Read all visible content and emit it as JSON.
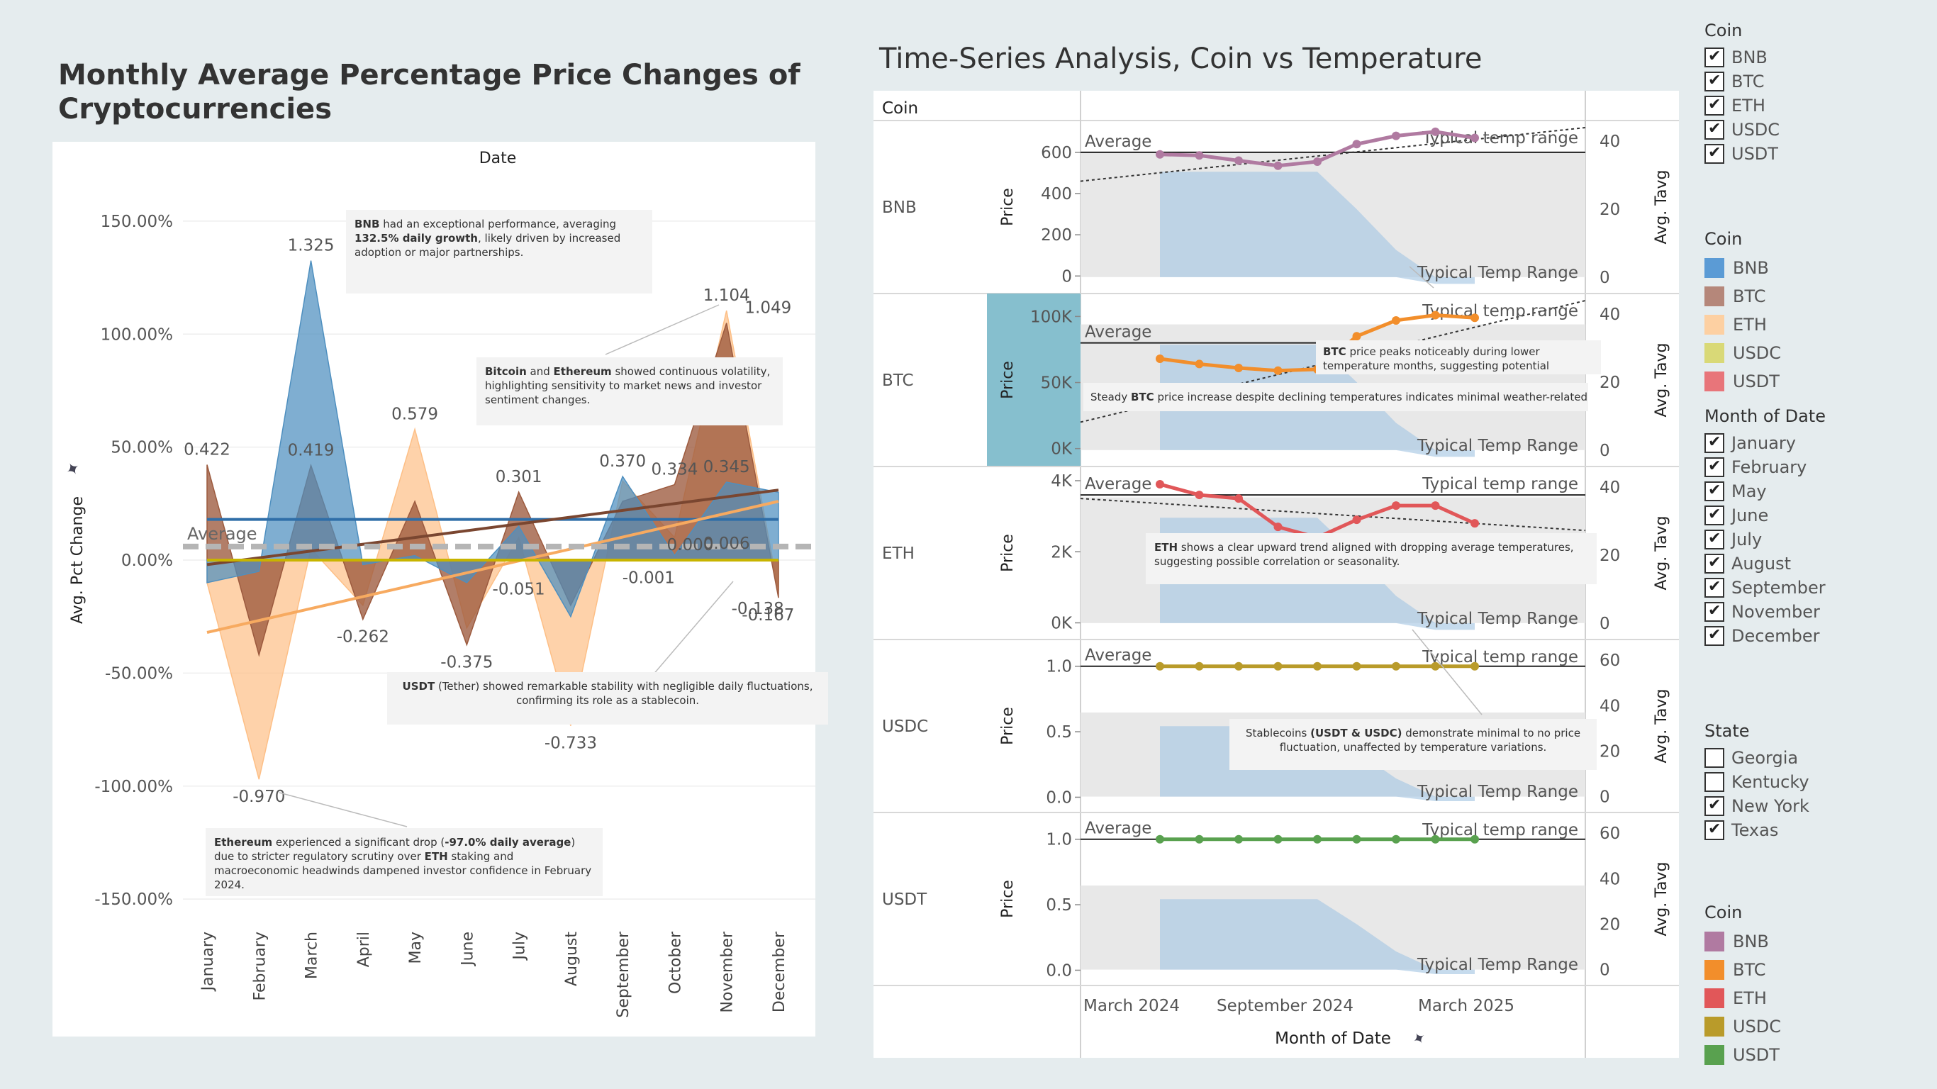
{
  "left_title": "Monthly Average Percentage Price Changes of Cryptocurrencies",
  "right_title": "Time-Series Analysis, Coin vs Temperature",
  "colors": {
    "BNB": "#4e8fbf",
    "BTC": "#9c5a3e",
    "ETH": "#fdbf86",
    "USDC": "#c8b400",
    "USDT": "#5b8a3a"
  },
  "chart_data": [
    {
      "type": "area",
      "title": "Monthly Average Percentage Price Changes of Cryptocurrencies",
      "xlabel": "Date",
      "ylabel": "Avg. Pct Change",
      "ylim": [
        -1.6,
        1.6
      ],
      "yticks": [
        "150.00%",
        "100.00%",
        "50.00%",
        "0.00%",
        "-50.00%",
        "-100.00%",
        "-150.00%"
      ],
      "ytick_values": [
        1.5,
        1.0,
        0.5,
        0.0,
        -0.5,
        -1.0,
        -1.5
      ],
      "categories": [
        "January",
        "February",
        "March",
        "April",
        "May",
        "June",
        "July",
        "August",
        "September",
        "October",
        "November",
        "December"
      ],
      "average_label": "Average",
      "average_value": 0.06,
      "series": [
        {
          "name": "BNB",
          "color": "#4e8fbf",
          "values": [
            -0.1,
            -0.05,
            1.325,
            -0.02,
            0.02,
            -0.1,
            0.15,
            -0.25,
            0.37,
            0.02,
            0.345,
            0.3
          ]
        },
        {
          "name": "BTC",
          "color": "#9c5a3e",
          "values": [
            0.422,
            -0.42,
            0.419,
            -0.262,
            0.26,
            -0.375,
            0.301,
            -0.2,
            0.26,
            0.334,
            1.049,
            -0.167
          ]
        },
        {
          "name": "ETH",
          "color": "#fdbf86",
          "values": [
            -0.1,
            -0.97,
            0.05,
            -0.2,
            0.579,
            -0.3,
            0.1,
            -0.733,
            0.35,
            0.1,
            1.104,
            -0.138
          ]
        },
        {
          "name": "USDC",
          "color": "#c8b400",
          "values": [
            0.0,
            0.0,
            0.0,
            0.0,
            0.0,
            0.0,
            0.0,
            0.0,
            0.0,
            0.0,
            0.0,
            0.0
          ]
        },
        {
          "name": "USDT",
          "color": "#5b8a3a",
          "values": [
            0.0,
            0.0,
            0.0,
            0.0,
            0.0,
            0.0,
            0.0,
            0.0,
            0.0,
            0.0,
            0.0,
            0.0
          ]
        }
      ],
      "trendlines": [
        {
          "name": "BNB",
          "color": "#2f6ea8",
          "start": 0.18,
          "end": 0.18
        },
        {
          "name": "BTC",
          "color": "#7a4630",
          "start": -0.02,
          "end": 0.31
        },
        {
          "name": "ETH",
          "color": "#f7aa60",
          "start": -0.32,
          "end": 0.26
        },
        {
          "name": "USDC",
          "color": "#c8b400",
          "start": 0.0,
          "end": 0.0
        }
      ],
      "data_labels": [
        {
          "text": "1.325",
          "cat": 2,
          "value": 1.325
        },
        {
          "text": "0.422",
          "cat": 0,
          "value": 0.422
        },
        {
          "text": "0.419",
          "cat": 2,
          "value": 0.419
        },
        {
          "text": "0.579",
          "cat": 4,
          "value": 0.579
        },
        {
          "text": "0.301",
          "cat": 6,
          "value": 0.301
        },
        {
          "text": "0.370",
          "cat": 8,
          "value": 0.37
        },
        {
          "text": "0.334",
          "cat": 9,
          "value": 0.334
        },
        {
          "text": "0.345",
          "cat": 10,
          "value": 0.345
        },
        {
          "text": "1.104",
          "cat": 10,
          "value": 1.104
        },
        {
          "text": "1.049",
          "cat": 10.8,
          "value": 1.049
        },
        {
          "text": "0.006",
          "cat": 10,
          "value": 0.006
        },
        {
          "text": "-0.262",
          "cat": 3,
          "value": -0.262
        },
        {
          "text": "-0.375",
          "cat": 5,
          "value": -0.375
        },
        {
          "text": "-0.051",
          "cat": 6,
          "value": -0.051
        },
        {
          "text": "-0.001",
          "cat": 8.5,
          "value": -0.001
        },
        {
          "text": "0.000",
          "cat": 9.3,
          "value": 0.0
        },
        {
          "text": "-0.138",
          "cat": 10.6,
          "value": -0.138
        },
        {
          "text": "-0.167",
          "cat": 10.8,
          "value": -0.167
        },
        {
          "text": "-0.733",
          "cat": 7,
          "value": -0.733
        },
        {
          "text": "-0.970",
          "cat": 1,
          "value": -0.97
        }
      ]
    },
    {
      "type": "line",
      "title": "Time-Series Analysis, Coin vs Temperature",
      "xlabel": "Month of Date",
      "x_ticks": [
        "March 2024",
        "September 2024",
        "March 2025"
      ],
      "row_header": "Coin",
      "ylabel": "Price",
      "ylabel_right": "Avg. Tavg",
      "rows": [
        {
          "coin": "BNB",
          "color": "#b07aa1",
          "yticks": [
            "600",
            "400",
            "200",
            "0"
          ],
          "ytick_values": [
            600,
            400,
            200,
            0
          ],
          "ylim": [
            -30,
            720
          ],
          "rticks": [
            "40",
            "20",
            "0"
          ],
          "rtick_values": [
            40,
            20,
            0
          ],
          "rlim": [
            -1.5,
            44
          ],
          "prices": [
            590,
            585,
            560,
            535,
            555,
            640,
            680,
            700,
            670
          ],
          "temp": [
            31,
            31,
            31,
            31,
            31,
            20,
            8,
            0,
            0
          ],
          "temp_base": [
            0,
            0,
            0,
            0,
            0,
            0,
            0,
            -2,
            -2
          ],
          "band": [
            0,
            37
          ],
          "avg": 600
        },
        {
          "coin": "BTC",
          "color": "#f28e2b",
          "yticks": [
            "100K",
            "50K",
            "0K"
          ],
          "ytick_values": [
            100000,
            50000,
            0
          ],
          "ylim": [
            -5000,
            112000
          ],
          "rticks": [
            "40",
            "20",
            "0"
          ],
          "rtick_values": [
            40,
            20,
            0
          ],
          "rlim": [
            -1.5,
            44
          ],
          "prices": [
            68000,
            64000,
            61000,
            59000,
            60000,
            85000,
            97000,
            101000,
            99000
          ],
          "temp": [
            31,
            31,
            31,
            31,
            31,
            20,
            8,
            0,
            0
          ],
          "temp_base": [
            0,
            0,
            0,
            0,
            0,
            0,
            0,
            -2,
            -2
          ],
          "band": [
            0,
            37
          ],
          "avg": 80000
        },
        {
          "coin": "ETH",
          "color": "#e15759",
          "yticks": [
            "4K",
            "2K",
            "0K"
          ],
          "ytick_values": [
            4000,
            2000,
            0
          ],
          "ylim": [
            -150,
            4200
          ],
          "rticks": [
            "40",
            "20",
            "0"
          ],
          "rtick_values": [
            40,
            20,
            0
          ],
          "rlim": [
            -1.5,
            44
          ],
          "prices": [
            3900,
            3600,
            3500,
            2700,
            2400,
            2900,
            3300,
            3300,
            2800
          ],
          "temp": [
            31,
            31,
            31,
            31,
            31,
            20,
            8,
            0,
            0
          ],
          "temp_base": [
            0,
            0,
            0,
            0,
            0,
            0,
            0,
            -2,
            -2
          ],
          "band": [
            0,
            37
          ],
          "avg": 3600
        },
        {
          "coin": "USDC",
          "color": "#b99b2a",
          "yticks": [
            "1.0",
            "0.5",
            "0.0"
          ],
          "ytick_values": [
            1.0,
            0.5,
            0.0
          ],
          "ylim": [
            -0.03,
            1.15
          ],
          "rticks": [
            "60",
            "40",
            "20",
            "0"
          ],
          "rtick_values": [
            60,
            40,
            20,
            0
          ],
          "rlim": [
            -2,
            66
          ],
          "prices": [
            1,
            1,
            1,
            1,
            1,
            1,
            1,
            1,
            1
          ],
          "temp": [
            31,
            31,
            31,
            31,
            31,
            20,
            8,
            0,
            0
          ],
          "temp_base": [
            0,
            0,
            0,
            0,
            0,
            0,
            0,
            -2,
            -2
          ],
          "band": [
            0,
            37
          ],
          "avg": 1.0
        },
        {
          "coin": "USDT",
          "color": "#59a14f",
          "yticks": [
            "1.0",
            "0.5",
            "0.0"
          ],
          "ytick_values": [
            1.0,
            0.5,
            0.0
          ],
          "ylim": [
            -0.03,
            1.15
          ],
          "rticks": [
            "60",
            "40",
            "20",
            "0"
          ],
          "rtick_values": [
            60,
            40,
            20,
            0
          ],
          "rlim": [
            -2,
            66
          ],
          "prices": [
            1,
            1,
            1,
            1,
            1,
            1,
            1,
            1,
            1
          ],
          "temp": [
            31,
            31,
            31,
            31,
            31,
            20,
            8,
            0,
            0
          ],
          "temp_base": [
            0,
            0,
            0,
            0,
            0,
            0,
            0,
            -2,
            -2
          ],
          "band": [
            0,
            37
          ],
          "avg": 1.0
        }
      ],
      "average_label": "Average",
      "band_label": "Typical Temp Range",
      "trend_label": "Typical temp range"
    }
  ],
  "annotations": {
    "bnb": {
      "bold": "BNB",
      "text1": " had an exceptional performance, averaging ",
      "bold2": "132.5% daily growth",
      "text2": ", likely driven by increased adoption or major partnerships."
    },
    "btc_eth": {
      "bold": "Bitcoin",
      "text1": " and ",
      "bold2": "Ethereum",
      "text2": " showed continuous volatility, highlighting sensitivity to market news and investor sentiment changes."
    },
    "usdt": {
      "bold": "USDT",
      "text1": " (Tether) showed remarkable stability with negligible daily fluctuations, confirming its role as a stablecoin."
    },
    "eth_drop": {
      "bold": "Ethereum",
      "text1": " experienced a significant drop (",
      "bold2": "-97.0% daily average",
      "text2": ") due to stricter regulatory scrutiny over ",
      "bold3": "ETH",
      "text3": " staking and macroeconomic headwinds dampened investor confidence in February 2024."
    },
    "btc_peak": {
      "bold": "BTC",
      "text1": " price peaks noticeably during lower temperature months, suggesting potential seasonal investment interest."
    },
    "btc_steady": {
      "text1": "Steady ",
      "bold": "BTC",
      "text2": " price increase despite declining temperatures indicates minimal weather-related pr"
    },
    "eth_trend": {
      "bold": "ETH",
      "text1": " shows a clear upward trend aligned with dropping average temperatures, suggesting possible correlation or seasonality."
    },
    "stable": {
      "text1": "Stablecoins ",
      "bold": "(USDT & USDC)",
      "text2": " demonstrate minimal to no price fluctuation, unaffected by temperature variations."
    }
  },
  "legends": {
    "coin_filter": {
      "title": "Coin",
      "items": [
        "BNB",
        "BTC",
        "ETH",
        "USDC",
        "USDT"
      ]
    },
    "coin_color": {
      "title": "Coin",
      "items": [
        {
          "label": "BNB",
          "color": "#5b9bd5"
        },
        {
          "label": "BTC",
          "color": "#b5877a"
        },
        {
          "label": "ETH",
          "color": "#fdd0a2"
        },
        {
          "label": "USDC",
          "color": "#d9d977"
        },
        {
          "label": "USDT",
          "color": "#e8757a"
        }
      ]
    },
    "month_filter": {
      "title": "Month of Date",
      "items": [
        "January",
        "February",
        "May",
        "June",
        "July",
        "August",
        "September",
        "November",
        "December"
      ]
    },
    "state_filter": {
      "title": "State",
      "items": [
        {
          "label": "Georgia",
          "checked": false
        },
        {
          "label": "Kentucky",
          "checked": false
        },
        {
          "label": "New York",
          "checked": true
        },
        {
          "label": "Texas",
          "checked": true
        }
      ]
    },
    "coin_color2": {
      "title": "Coin",
      "items": [
        {
          "label": "BNB",
          "color": "#b07aa1"
        },
        {
          "label": "BTC",
          "color": "#f28e2b"
        },
        {
          "label": "ETH",
          "color": "#e15759"
        },
        {
          "label": "USDC",
          "color": "#b99b2a"
        },
        {
          "label": "USDT",
          "color": "#59a14f"
        }
      ]
    }
  }
}
